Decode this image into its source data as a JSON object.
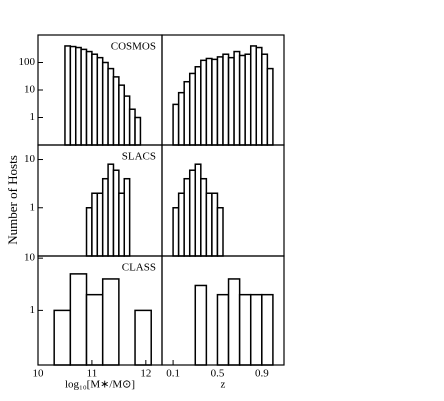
{
  "ylabel": "Number of Hosts",
  "chart_data": [
    {
      "type": "histogram",
      "annotation": "COSMOS",
      "log_scale": true,
      "color": "#ffffff",
      "bins": [
        10.5,
        10.6,
        10.7,
        10.8,
        10.9,
        11.0,
        11.1,
        11.2,
        11.3,
        11.4,
        11.5,
        11.6,
        11.7,
        11.8,
        11.9
      ],
      "values": [
        400,
        380,
        350,
        300,
        250,
        200,
        150,
        100,
        60,
        30,
        15,
        6,
        2,
        1
      ],
      "xlim": [
        10,
        12.3
      ],
      "ylim": [
        0.1,
        1000
      ],
      "yticks": [
        1,
        10,
        100
      ]
    },
    {
      "type": "histogram",
      "log_scale": true,
      "color": "#ffffff",
      "bins": [
        0.1,
        0.15,
        0.2,
        0.25,
        0.3,
        0.35,
        0.4,
        0.45,
        0.5,
        0.55,
        0.6,
        0.65,
        0.7,
        0.75,
        0.8,
        0.85,
        0.9,
        0.95,
        1.0
      ],
      "values": [
        3,
        8,
        20,
        40,
        70,
        120,
        140,
        130,
        160,
        200,
        150,
        250,
        180,
        200,
        400,
        350,
        200,
        60
      ],
      "xlim": [
        0,
        1.1
      ],
      "ylim": [
        0.1,
        1000
      ]
    },
    {
      "type": "histogram",
      "annotation": "SLACS",
      "log_scale": true,
      "color": "#ffffff",
      "bins": [
        10.9,
        11.0,
        11.1,
        11.2,
        11.3,
        11.4,
        11.5,
        11.6,
        11.7
      ],
      "values": [
        1,
        2,
        2,
        4,
        8,
        6,
        2,
        4
      ],
      "xlim": [
        10,
        12.3
      ],
      "ylim": [
        0.1,
        20
      ],
      "yticks": [
        1,
        10
      ]
    },
    {
      "type": "histogram",
      "log_scale": true,
      "color": "#ffffff",
      "bins": [
        0.1,
        0.15,
        0.2,
        0.25,
        0.3,
        0.35,
        0.4,
        0.45,
        0.5,
        0.55
      ],
      "values": [
        1,
        2,
        4,
        6,
        8,
        4,
        2,
        2,
        1
      ],
      "xlim": [
        0,
        1.1
      ],
      "ylim": [
        0.1,
        20
      ]
    },
    {
      "type": "histogram",
      "annotation": "CLASS",
      "log_scale": true,
      "color": "#ffffff",
      "bins": [
        10.3,
        10.6,
        10.9,
        11.2,
        11.5,
        11.8,
        12.1
      ],
      "values": [
        1,
        5,
        2,
        4,
        0,
        1
      ],
      "xlim": [
        10,
        12.3
      ],
      "ylim": [
        0.09,
        11
      ],
      "yticks": [
        1,
        10
      ],
      "xticks": [
        10,
        11,
        12
      ],
      "xlabel": "log₁₀[M∗/M⊙]"
    },
    {
      "type": "histogram",
      "log_scale": true,
      "color": "#ffffff",
      "bins": [
        0.3,
        0.4,
        0.5,
        0.6,
        0.7,
        0.8,
        0.9,
        1.0
      ],
      "values": [
        3,
        0,
        2,
        4,
        2,
        2,
        2
      ],
      "xlim": [
        0,
        1.1
      ],
      "ylim": [
        0.09,
        11
      ],
      "xticks": [
        0.1,
        0.5,
        0.9
      ],
      "xlabel": "z"
    }
  ]
}
